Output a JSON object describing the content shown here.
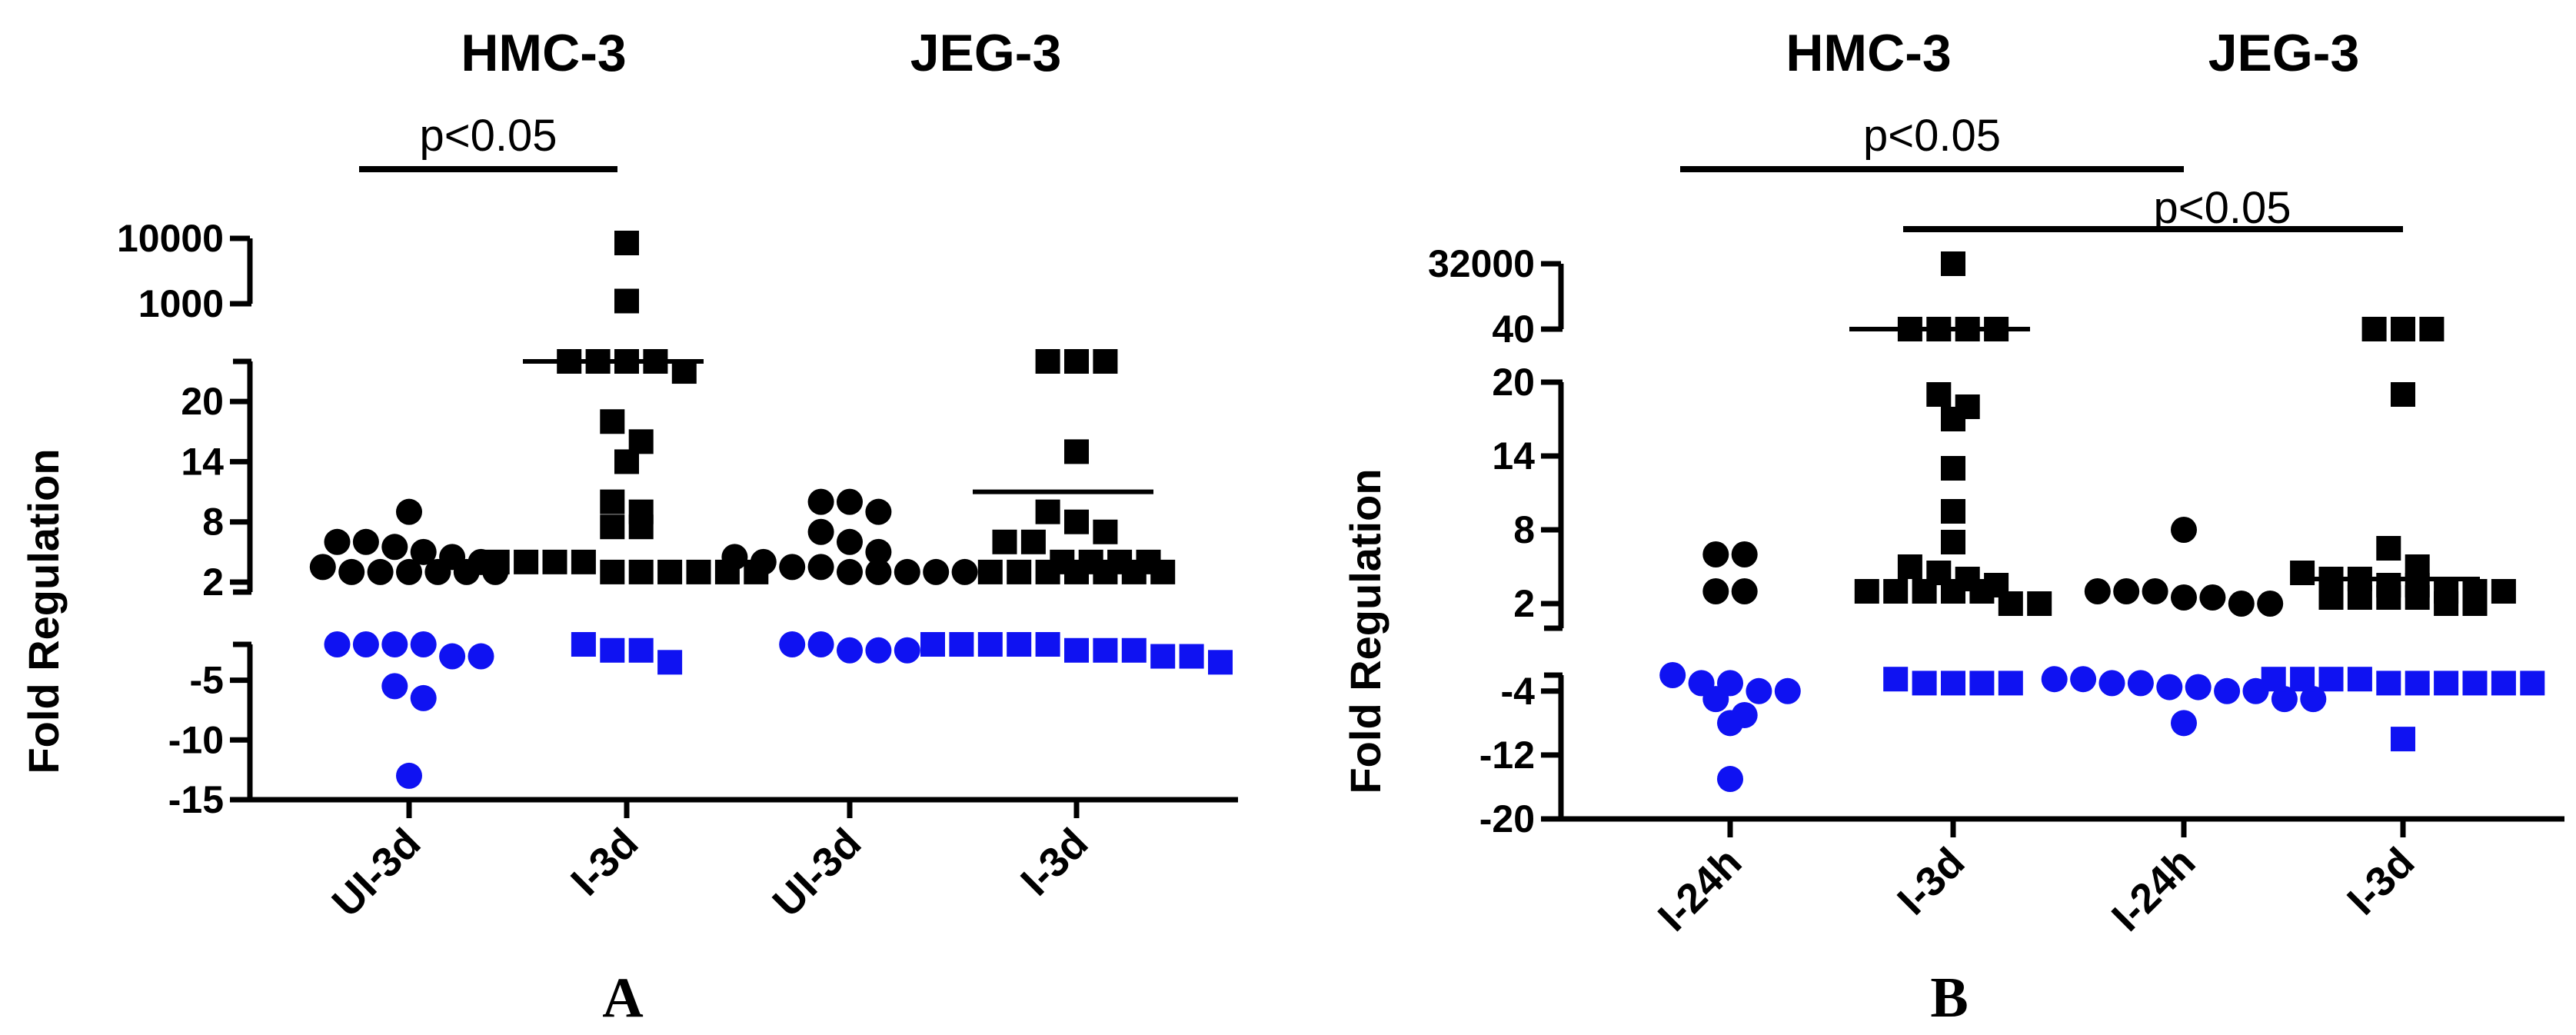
{
  "chart_data": [
    {
      "type": "scatter",
      "panel_label": "A",
      "group_titles": [
        "HMC-3",
        "JEG-3"
      ],
      "ylabel": "Fold Regulation",
      "categories": [
        "UI-3d",
        "I-3d",
        "UI-3d",
        "I-3d"
      ],
      "y_axis_segments": [
        {
          "ticks": [
            -15,
            -10,
            -5
          ],
          "range": [
            -15,
            -2
          ]
        },
        {
          "ticks": [
            2,
            8,
            14,
            20
          ],
          "range": [
            1,
            24
          ]
        },
        {
          "ticks": [
            1000,
            10000
          ],
          "range": [
            1000,
            10000
          ]
        }
      ],
      "significance": [
        {
          "label": "p<0.05",
          "from": 0,
          "to": 1
        }
      ],
      "series": [
        {
          "marker": "circle",
          "x": 0,
          "black": [
            9,
            6,
            6,
            5.5,
            5,
            4.5,
            4,
            3.5,
            3,
            3,
            3,
            3,
            3,
            3
          ],
          "blue": [
            -2,
            -2,
            -2,
            -2,
            -3,
            -3,
            -5.5,
            -6.5,
            -13
          ]
        },
        {
          "marker": "square",
          "x": 1,
          "black": [
            8500,
            1100,
            900,
            900,
            900,
            900,
            23,
            18,
            16,
            14,
            10,
            9,
            7.5,
            7.5,
            4,
            4,
            4,
            4,
            3,
            3,
            3,
            3,
            3,
            3
          ],
          "blue": [
            -2,
            -2.5,
            -2.5,
            -3.5
          ],
          "mean": 900
        },
        {
          "marker": "circle",
          "x": 2,
          "black": [
            10,
            10,
            9,
            7,
            6,
            5,
            4.5,
            4,
            3.5,
            3.5,
            3,
            3,
            3,
            3,
            3
          ],
          "blue": [
            -1.5,
            -2,
            -2.5,
            -2.5,
            -2.5
          ]
        },
        {
          "marker": "square",
          "x": 3,
          "black": [
            900,
            900,
            900,
            15,
            9,
            8,
            7,
            6,
            6,
            4,
            4,
            4,
            4,
            3,
            3,
            3,
            3,
            3,
            3,
            3
          ],
          "blue": [
            -2,
            -2,
            -2,
            -2,
            -2,
            -2.5,
            -2.5,
            -2.5,
            -3,
            -3,
            -3.5
          ],
          "mean": 11
        }
      ]
    },
    {
      "type": "scatter",
      "panel_label": "B",
      "group_titles": [
        "HMC-3",
        "JEG-3"
      ],
      "ylabel": "Fold Regulation",
      "categories": [
        "I-24h",
        "I-3d",
        "I-24h",
        "I-3d"
      ],
      "y_axis_segments": [
        {
          "ticks": [
            -20,
            -12,
            -4
          ],
          "range": [
            -20,
            -2
          ]
        },
        {
          "ticks": [
            2,
            8,
            14,
            20
          ],
          "range": [
            0,
            20
          ]
        },
        {
          "ticks": [
            40,
            32000
          ],
          "range": [
            40,
            32000
          ]
        }
      ],
      "significance": [
        {
          "label": "p<0.05",
          "from": 0,
          "to": 2
        },
        {
          "label": "p<0.05",
          "from": 1,
          "to": 3
        }
      ],
      "series": [
        {
          "marker": "circle",
          "x": 0,
          "black": [
            6,
            6,
            3,
            3
          ],
          "blue": [
            -2,
            -3,
            -3,
            -4,
            -4,
            -5,
            -7,
            -8,
            -15
          ]
        },
        {
          "marker": "square",
          "x": 1,
          "black": [
            32000,
            40,
            40,
            40,
            40,
            19,
            18,
            17,
            13,
            9.5,
            7,
            5,
            4.5,
            4,
            3.5,
            3,
            3,
            3,
            3,
            3,
            2,
            2
          ],
          "blue": [
            -2.5,
            -3,
            -3,
            -3,
            -3
          ],
          "mean": 40
        },
        {
          "marker": "circle",
          "x": 2,
          "black": [
            8,
            3,
            3,
            3,
            2.5,
            2.5,
            2,
            2
          ],
          "blue": [
            -2.5,
            -2.5,
            -3,
            -3,
            -3.5,
            -3.5,
            -4,
            -4,
            -5,
            -5,
            -8
          ]
        },
        {
          "marker": "square",
          "x": 3,
          "black": [
            40,
            40,
            40,
            19,
            6.5,
            5,
            4.5,
            4,
            4,
            3.5,
            3.5,
            3,
            3,
            3,
            2.5,
            2.5,
            2.5,
            2.5,
            2,
            2
          ],
          "blue": [
            -2.5,
            -2.5,
            -2.5,
            -2.5,
            -3,
            -3,
            -3,
            -3,
            -3,
            -3,
            -10
          ],
          "mean": 4
        }
      ]
    }
  ],
  "colors": {
    "black": "#000000",
    "blue": "#0f12f2"
  }
}
